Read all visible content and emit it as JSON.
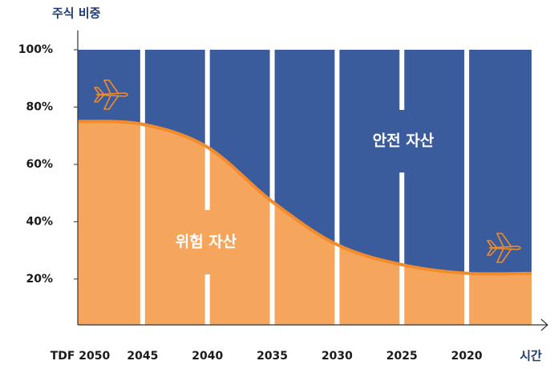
{
  "chart_data": {
    "type": "area",
    "y_axis_label": "주식 비중",
    "x_axis_label": "시간",
    "categories": [
      "TDF 2050",
      "2045",
      "2040",
      "2035",
      "2030",
      "2025",
      "2020",
      null
    ],
    "values": [
      75,
      74,
      66,
      47,
      32,
      25,
      22,
      22
    ],
    "ylim": [
      4,
      100
    ],
    "yticks": [
      {
        "value": 20,
        "label": "20%"
      },
      {
        "value": 40,
        "label": "40%"
      },
      {
        "value": 60,
        "label": "60%"
      },
      {
        "value": 80,
        "label": "80%"
      },
      {
        "value": 100,
        "label": "100%"
      }
    ],
    "color": "#f5a55c",
    "line_color": "#f28b2c",
    "background_color": "#3b5c9c",
    "annotations": [
      "위험 자산",
      "안전 자산"
    ]
  }
}
